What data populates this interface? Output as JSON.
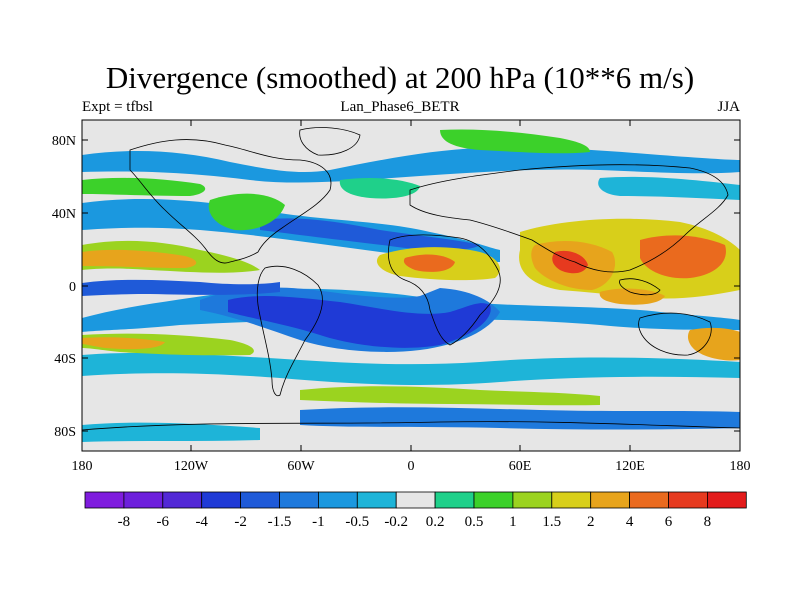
{
  "title": "Divergence (smoothed) at 200 hPa (10**6 m/s)",
  "subtitle_left": "Expt = tfbsl",
  "subtitle_center": "Lan_Phase6_BETR",
  "subtitle_right": "JJA",
  "y_ticks": [
    "80N",
    "40N",
    "0",
    "40S",
    "80S"
  ],
  "x_ticks": [
    "180",
    "120W",
    "60W",
    "0",
    "60E",
    "120E",
    "180"
  ],
  "colorbar": {
    "labels": [
      "-8",
      "-6",
      "-4",
      "-2",
      "-1.5",
      "-1",
      "-0.5",
      "-0.2",
      "0.2",
      "0.5",
      "1",
      "1.5",
      "2",
      "4",
      "6",
      "8"
    ],
    "colors": [
      "#7f1cde",
      "#6d1fdc",
      "#5228d6",
      "#1f3ad6",
      "#1f5ad8",
      "#1e79dc",
      "#1b98df",
      "#1eb4d8",
      "#e6e6e6",
      "#1fd08a",
      "#3cd12a",
      "#9bd31f",
      "#d8cf1a",
      "#e7a41c",
      "#ea6a1e",
      "#e63a1f",
      "#e31b1b"
    ]
  },
  "colors": {
    "neutral": "#e6e6e6",
    "coast": "#000000"
  }
}
